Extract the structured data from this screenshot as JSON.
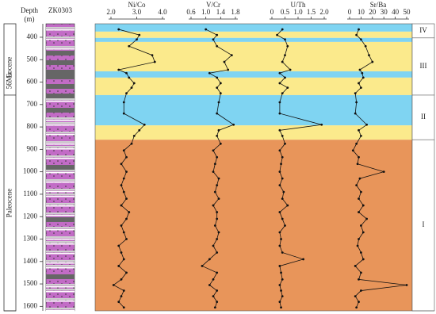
{
  "chart_data": {
    "type": "line",
    "depth_label": "Depth",
    "depth_unit": "(m)",
    "well": "ZK0303",
    "ylim": [
      340,
      1620
    ],
    "yticks": [
      400,
      500,
      600,
      700,
      800,
      900,
      1000,
      1100,
      1200,
      1300,
      1400,
      1500,
      1600
    ],
    "epochs": [
      {
        "name": "Eocene",
        "top": 340,
        "bottom": 658
      },
      {
        "name": "Paleocene",
        "top": 658,
        "bottom": 1620
      }
    ],
    "boundary_label": "56Ma",
    "bands": [
      {
        "top": 340,
        "bottom": 375,
        "color": "#7fd4f2"
      },
      {
        "top": 375,
        "bottom": 403,
        "color": "#fbea8c"
      },
      {
        "top": 403,
        "bottom": 421,
        "color": "#7fd4f2"
      },
      {
        "top": 421,
        "bottom": 552,
        "color": "#fbea8c"
      },
      {
        "top": 552,
        "bottom": 580,
        "color": "#7fd4f2"
      },
      {
        "top": 580,
        "bottom": 658,
        "color": "#fbea8c"
      },
      {
        "top": 658,
        "bottom": 793,
        "color": "#7fd4f2"
      },
      {
        "top": 793,
        "bottom": 857,
        "color": "#fbea8c"
      },
      {
        "top": 857,
        "bottom": 1620,
        "color": "#e8955a"
      }
    ],
    "zones": [
      {
        "label": "IV",
        "top": 340,
        "bottom": 403
      },
      {
        "label": "III",
        "top": 403,
        "bottom": 658
      },
      {
        "label": "II",
        "top": 658,
        "bottom": 857
      },
      {
        "label": "I",
        "top": 857,
        "bottom": 1620
      }
    ],
    "depths": [
      365,
      390,
      410,
      440,
      480,
      510,
      545,
      560,
      580,
      605,
      625,
      650,
      690,
      740,
      790,
      815,
      840,
      875,
      905,
      935,
      965,
      1000,
      1030,
      1060,
      1090,
      1120,
      1150,
      1180,
      1210,
      1240,
      1270,
      1300,
      1330,
      1360,
      1390,
      1420,
      1450,
      1480,
      1505,
      1530,
      1555,
      1580,
      1605
    ],
    "series": [
      {
        "name": "Ni/Co",
        "color": "#111",
        "xlim": [
          2.0,
          4.0
        ],
        "xticks": [
          {
            "value": 2.0,
            "label": "2.0"
          },
          {
            "value": 3.0,
            "label": "3.0"
          },
          {
            "value": 4.0,
            "label": "4.0"
          }
        ],
        "values": [
          2.3,
          3.1,
          3.0,
          2.7,
          3.6,
          3.7,
          2.3,
          2.6,
          2.7,
          2.9,
          2.8,
          2.6,
          2.5,
          2.5,
          3.3,
          3.1,
          2.9,
          2.8,
          2.5,
          2.6,
          2.4,
          2.6,
          2.5,
          2.4,
          2.5,
          2.6,
          2.4,
          2.7,
          2.6,
          2.4,
          2.5,
          2.6,
          2.3,
          2.4,
          2.5,
          2.3,
          2.6,
          2.4,
          2.1,
          2.5,
          2.4,
          2.3,
          2.5
        ]
      },
      {
        "name": "V/Cr",
        "color": "#111",
        "xlim": [
          0.6,
          1.8
        ],
        "xticks": [
          0.6,
          {
            "value": 1.0,
            "label": "1.0"
          },
          1.4,
          1.8
        ],
        "values": [
          1.0,
          1.3,
          1.2,
          1.3,
          1.7,
          1.5,
          1.6,
          1.1,
          1.3,
          1.4,
          1.3,
          1.4,
          1.35,
          1.3,
          1.75,
          1.35,
          1.3,
          1.4,
          1.2,
          1.3,
          1.25,
          1.2,
          1.35,
          1.3,
          1.25,
          1.35,
          1.2,
          1.3,
          1.3,
          1.25,
          1.35,
          1.3,
          1.2,
          1.3,
          1.1,
          0.9,
          1.3,
          1.2,
          1.1,
          1.3,
          1.2,
          1.3,
          1.25
        ]
      },
      {
        "name": "U/Th",
        "color": "#111",
        "xlim": [
          0,
          2.0
        ],
        "xticks": [
          0,
          0.5,
          {
            "value": 1.0,
            "label": "1.0"
          },
          1.5,
          {
            "value": 2.0,
            "label": "2.0"
          }
        ],
        "values": [
          0.4,
          0.2,
          0.5,
          0.6,
          0.5,
          0.4,
          0.7,
          0.3,
          0.5,
          0.3,
          0.6,
          0.4,
          0.3,
          0.3,
          1.9,
          0.3,
          0.4,
          0.5,
          0.3,
          0.4,
          0.35,
          0.3,
          0.4,
          0.3,
          0.45,
          0.4,
          0.6,
          0.3,
          0.4,
          0.5,
          0.3,
          0.35,
          0.3,
          0.4,
          1.2,
          0.3,
          0.35,
          0.4,
          0.3,
          0.35,
          0.4,
          0.3,
          0.35
        ]
      },
      {
        "name": "Sr/Ba",
        "color": "#111",
        "xlim": [
          0,
          50
        ],
        "xticks": [
          0,
          10,
          20,
          30,
          40,
          50
        ],
        "values": [
          8,
          6,
          10,
          14,
          17,
          20,
          9,
          11,
          12,
          8,
          10,
          5,
          6,
          5,
          15,
          8,
          10,
          6,
          3,
          8,
          7,
          30,
          9,
          6,
          10,
          8,
          12,
          8,
          15,
          10,
          12,
          8,
          7,
          10,
          12,
          5,
          10,
          8,
          50,
          10,
          5,
          8,
          6
        ]
      }
    ]
  }
}
